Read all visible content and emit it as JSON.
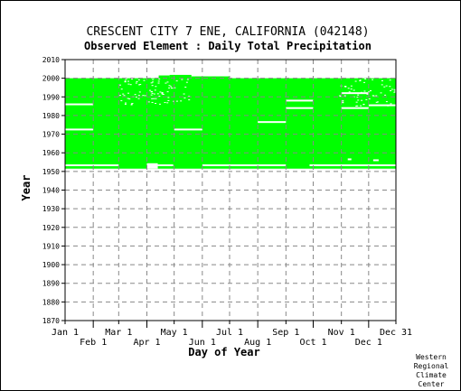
{
  "chart_data": {
    "type": "heatmap",
    "title": "CRESCENT CITY 7 ENE, CALIFORNIA   (042148)",
    "subtitle": "Observed Element : Daily Total Precipitation",
    "xlabel": "Day of Year",
    "ylabel": "Year",
    "ylim": [
      1870,
      2010
    ],
    "xlim": [
      1,
      365
    ],
    "y_ticks": [
      1870,
      1880,
      1890,
      1900,
      1910,
      1920,
      1930,
      1940,
      1950,
      1960,
      1970,
      1980,
      1990,
      2000,
      2010
    ],
    "x_ticks": [
      {
        "label": "Jan 1",
        "day": 1,
        "row": 0
      },
      {
        "label": "Feb 1",
        "day": 32,
        "row": 1
      },
      {
        "label": "Mar 1",
        "day": 60,
        "row": 0
      },
      {
        "label": "Apr 1",
        "day": 91,
        "row": 1
      },
      {
        "label": "May 1",
        "day": 121,
        "row": 0
      },
      {
        "label": "Jun 1",
        "day": 152,
        "row": 1
      },
      {
        "label": "Jul 1",
        "day": 182,
        "row": 0
      },
      {
        "label": "Aug 1",
        "day": 213,
        "row": 1
      },
      {
        "label": "Sep 1",
        "day": 244,
        "row": 0
      },
      {
        "label": "Oct 1",
        "day": 274,
        "row": 1
      },
      {
        "label": "Nov 1",
        "day": 305,
        "row": 0
      },
      {
        "label": "Dec 1",
        "day": 335,
        "row": 1
      },
      {
        "label": "Dec 31",
        "day": 365,
        "row": 0
      }
    ],
    "grid": true,
    "data_color": "#00ff00",
    "coverage": {
      "start_year": 1951.5,
      "end_year": 2000,
      "start_day": 1,
      "end_day": 365
    },
    "gaps": [
      {
        "start_day": 1,
        "end_day": 60,
        "year": 1953.3
      },
      {
        "start_day": 103,
        "end_day": 120,
        "year": 1953.3
      },
      {
        "start_day": 152,
        "end_day": 244,
        "year": 1953.3
      },
      {
        "start_day": 270,
        "end_day": 365,
        "year": 1953.3
      },
      {
        "start_day": 1,
        "end_day": 32,
        "year": 1986
      },
      {
        "start_day": 1,
        "end_day": 32,
        "year": 1972.5
      },
      {
        "start_day": 121,
        "end_day": 152,
        "year": 1972.5
      },
      {
        "start_day": 213,
        "end_day": 244,
        "year": 1976.5
      },
      {
        "start_day": 244,
        "end_day": 274,
        "year": 1984
      },
      {
        "start_day": 244,
        "end_day": 274,
        "year": 1988
      },
      {
        "start_day": 305,
        "end_day": 335,
        "year": 1984
      },
      {
        "start_day": 305,
        "end_day": 335,
        "year": 1992
      },
      {
        "start_day": 335,
        "end_day": 365,
        "year": 1985.5
      },
      {
        "start_day": 312,
        "end_day": 316,
        "year": 1956.5
      },
      {
        "start_day": 340,
        "end_day": 346,
        "year": 1956
      }
    ],
    "top_extensions": [
      {
        "start_day": 104,
        "end_day": 116,
        "year_top": 2001.5
      },
      {
        "start_day": 116,
        "end_day": 140,
        "year_top": 2001.8
      },
      {
        "start_day": 140,
        "end_day": 182,
        "year_top": 2001
      }
    ],
    "missing_in_1953": [
      {
        "start_day": 91,
        "end_day": 103
      }
    ]
  },
  "footer": {
    "line1": "Western",
    "line2": "Regional",
    "line3": "Climate",
    "line4": "Center"
  }
}
